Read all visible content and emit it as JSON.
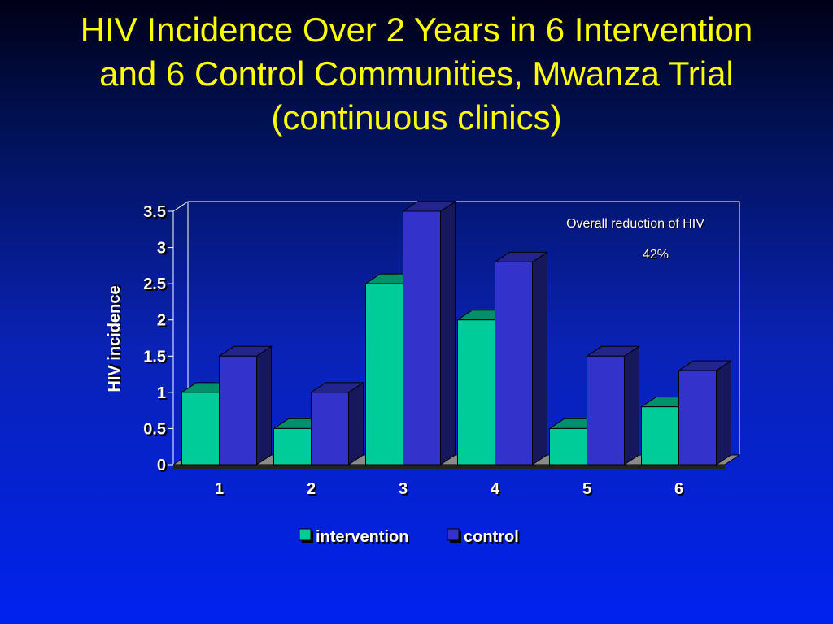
{
  "slide": {
    "title_lines": [
      "HIV Incidence Over 2 Years in 6 Intervention",
      "and 6 Control Communities, Mwanza Trial",
      "(continuous clinics)"
    ]
  },
  "chart_data": {
    "type": "bar",
    "title": "",
    "xlabel": "",
    "ylabel": "HIV incidence",
    "categories": [
      "1",
      "2",
      "3",
      "4",
      "5",
      "6"
    ],
    "series": [
      {
        "name": "intervention",
        "values": [
          1.0,
          0.5,
          2.5,
          2.0,
          0.5,
          0.8
        ],
        "color": "#00cc99"
      },
      {
        "name": "control",
        "values": [
          1.5,
          1.0,
          3.5,
          2.8,
          1.5,
          1.3
        ],
        "color": "#3333cc"
      }
    ],
    "ylim": [
      0,
      3.5
    ],
    "yticks": [
      "0",
      "0.5",
      "1",
      "1.5",
      "2",
      "2.5",
      "3",
      "3.5"
    ],
    "grid": false,
    "legend_position": "bottom",
    "annotations": [
      "Overall reduction of HIV",
      "42%"
    ]
  }
}
